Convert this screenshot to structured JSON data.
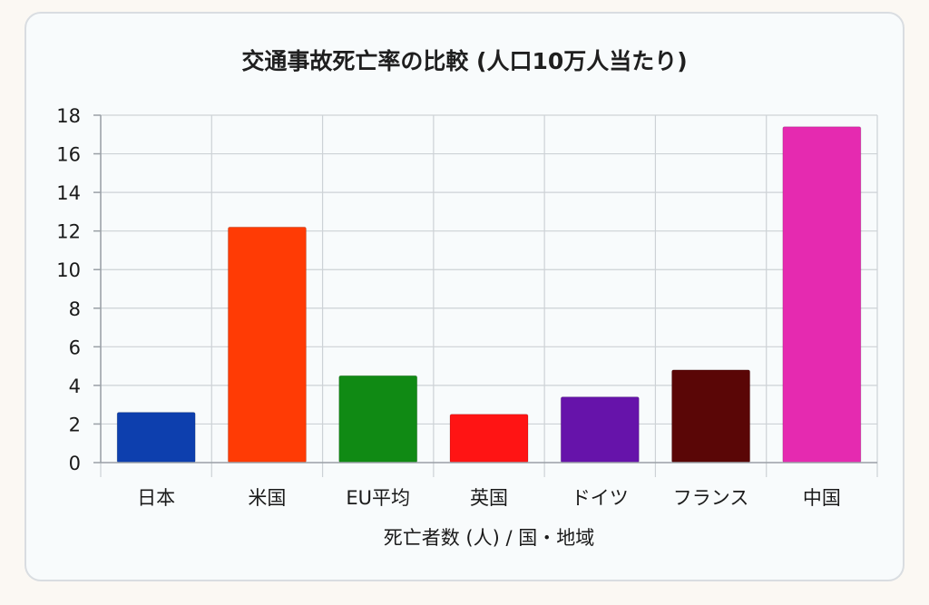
{
  "chart_data": {
    "type": "bar",
    "title": "交通事故死亡率の比較 (人口10万人当たり)",
    "xlabel": "死亡者数 (人) / 国・地域",
    "ylabel": "",
    "ylim": [
      0,
      18
    ],
    "yticks": [
      0,
      2,
      4,
      6,
      8,
      10,
      12,
      14,
      16,
      18
    ],
    "grid": true,
    "categories": [
      "日本",
      "米国",
      "EU平均",
      "英国",
      "ドイツ",
      "フランス",
      "中国"
    ],
    "values": [
      2.6,
      12.2,
      4.5,
      2.5,
      3.4,
      4.8,
      17.4
    ],
    "colors": [
      "#0d3fae",
      "#ff3b05",
      "#108a14",
      "#ff1414",
      "#6613aa",
      "#5a0606",
      "#e52ab0"
    ]
  }
}
